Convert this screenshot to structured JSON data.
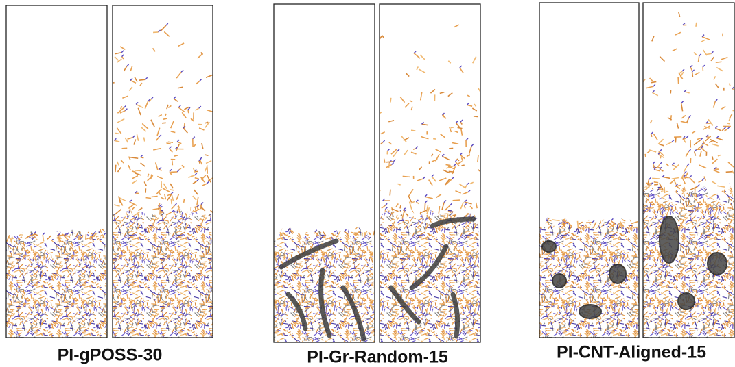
{
  "panels": [
    {
      "label": "PI-gPOSS-30"
    },
    {
      "label": "PI-Gr-Random-15"
    },
    {
      "label": "PI-CNT-Aligned-15"
    }
  ]
}
